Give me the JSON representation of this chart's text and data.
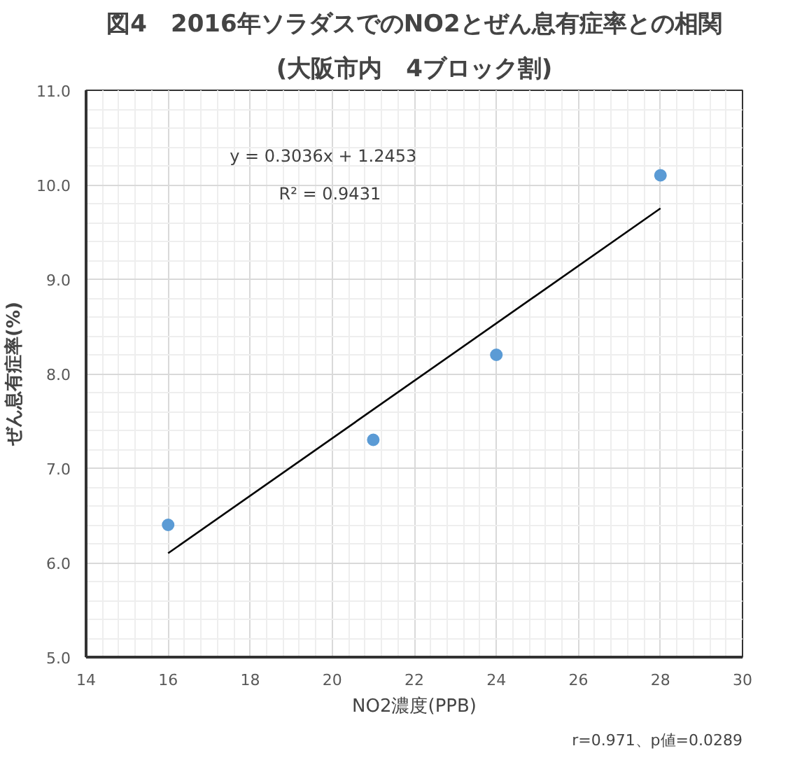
{
  "chart_data": {
    "type": "scatter",
    "title": "図4　2016年ソラダスでのNO2とぜん息有症率との相関",
    "subtitle": "(大阪市内　4ブロック割)",
    "xlabel": "NO2濃度(PPB)",
    "ylabel": "ぜん息有症率(%)",
    "x": [
      16,
      21,
      24,
      28
    ],
    "series": [
      {
        "color": "#5b9bd5",
        "values": [
          6.4,
          7.3,
          8.2,
          10.1
        ]
      },
      {
        "type": "line",
        "marker": "none",
        "color": "#000000",
        "x": [
          16,
          28
        ],
        "values": [
          6.1,
          9.75
        ]
      }
    ],
    "xlim": [
      14,
      30
    ],
    "xticks": [
      14,
      16,
      18,
      20,
      22,
      24,
      26,
      28,
      30
    ],
    "ylim": [
      5,
      11
    ],
    "yticks": [
      {
        "value": 5,
        "label": "5.0"
      },
      {
        "value": 6,
        "label": "6.0"
      },
      {
        "value": 7,
        "label": "7.0"
      },
      {
        "value": 8,
        "label": "8.0"
      },
      {
        "value": 9,
        "label": "9.0"
      },
      {
        "value": 10,
        "label": "10.0"
      },
      {
        "value": 11,
        "label": "11.0"
      }
    ],
    "grid": true,
    "marker": "circle",
    "line_style": "solid",
    "annotations": [
      "y = 0.3036x + 1.2453",
      "R² = 0.9431",
      "r=0.971、p値=0.0289"
    ]
  }
}
